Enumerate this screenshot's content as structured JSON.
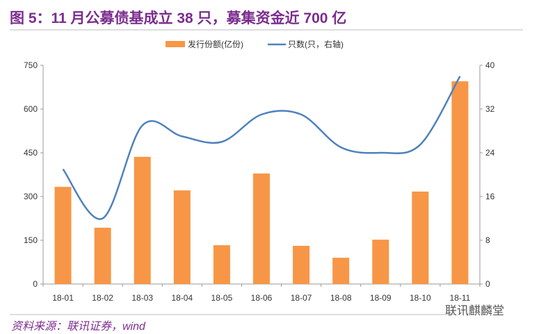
{
  "title": "图 5：11 月公募债基成立 38 只，募集资金近 700 亿",
  "source": "资料来源：联讯证券，wind",
  "watermark": "联讯麒麟堂",
  "chart_data": {
    "type": "bar+line",
    "categories": [
      "18-01",
      "18-02",
      "18-03",
      "18-04",
      "18-05",
      "18-06",
      "18-07",
      "18-08",
      "18-09",
      "18-10",
      "18-11"
    ],
    "series": [
      {
        "name": "发行份额(亿份)",
        "type": "bar",
        "axis": "left",
        "color": "#f79646",
        "values": [
          333,
          193,
          436,
          321,
          133,
          379,
          131,
          90,
          152,
          317,
          695
        ]
      },
      {
        "name": "只数(只，右轴)",
        "type": "line",
        "axis": "right",
        "color": "#4f81bd",
        "values": [
          21,
          12,
          29,
          27,
          26,
          31,
          31,
          25,
          24,
          25.5,
          38
        ]
      }
    ],
    "left_axis": {
      "ylim": [
        0,
        750
      ],
      "ticks": [
        0,
        150,
        300,
        450,
        600,
        750
      ]
    },
    "right_axis": {
      "ylim": [
        0,
        40
      ],
      "ticks": [
        0,
        8,
        16,
        24,
        32,
        40
      ]
    },
    "grid": false,
    "legend": "top"
  }
}
